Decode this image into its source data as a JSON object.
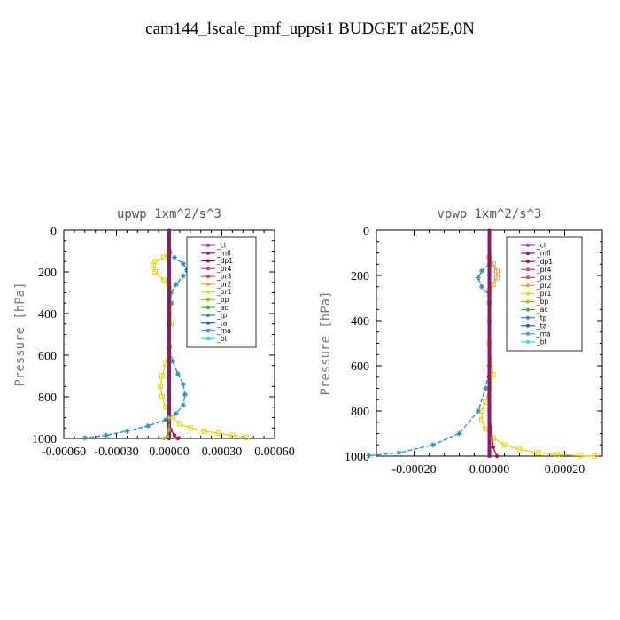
{
  "title": "cam144_lscale_pmf_uppsi1  BUDGET at25E,0N",
  "legend_entries": [
    "_cl",
    "_mfl",
    "_dp1",
    "_pr4",
    "_pr3",
    "_pr2",
    "_pr1",
    "_bp",
    "_ac",
    "_tp",
    "_ta",
    "_ma",
    "_bt"
  ],
  "legend_colors": [
    "#9b4fd0",
    "#8b1a6b",
    "#c4004c",
    "#e0407a",
    "#e04a3a",
    "#f0a040",
    "#f0d000",
    "#a0c020",
    "#30c030",
    "#2090c0",
    "#3050e0",
    "#40a0d0",
    "#20e0e0"
  ],
  "chart_data": [
    {
      "type": "line",
      "title": "upwp   1xm^2/s^3",
      "xlabel": "",
      "ylabel": "Pressure [hPa]",
      "xlim": [
        -0.0006,
        0.0006
      ],
      "ylim": [
        1000,
        0
      ],
      "xticks": [
        "-0.00060",
        "-0.00030",
        "0.00000",
        "0.00030",
        "0.00060"
      ],
      "yticks": [
        "0",
        "200",
        "400",
        "600",
        "800",
        "1000"
      ],
      "legend": "top-right",
      "series": [
        {
          "name": "_pr1",
          "color": "#f0d000",
          "x": [
            0,
            -3e-05,
            -8e-05,
            -9e-05,
            -8e-05,
            -3e-05,
            0,
            1e-05,
            1e-05,
            0,
            -2e-05,
            -4e-05,
            -5e-05,
            -4e-05,
            -2e-05,
            2e-05,
            6e-05,
            0.00012,
            0.0002,
            0.00028,
            0.00036,
            0.00044
          ],
          "y": [
            100,
            130,
            150,
            170,
            200,
            240,
            280,
            350,
            450,
            560,
            640,
            700,
            750,
            800,
            850,
            900,
            930,
            950,
            965,
            975,
            985,
            995
          ]
        },
        {
          "name": "_tp",
          "color": "#2090c0",
          "x": [
            0,
            3e-05,
            8e-05,
            0.0001,
            8e-05,
            4e-05,
            1e-05,
            1e-05,
            0,
            0,
            2e-05,
            5e-05,
            8e-05,
            9e-05,
            8e-05,
            4e-05,
            -2e-05,
            -0.00012,
            -0.00024,
            -0.00036,
            -0.00048
          ],
          "y": [
            100,
            130,
            160,
            190,
            220,
            260,
            300,
            350,
            450,
            560,
            630,
            690,
            740,
            790,
            840,
            880,
            910,
            940,
            965,
            985,
            998
          ]
        },
        {
          "name": "_dp1",
          "color": "#c4004c",
          "x": [
            0,
            0,
            0,
            0,
            0,
            0,
            1e-05,
            3e-05,
            5e-05
          ],
          "y": [
            0,
            200,
            400,
            600,
            800,
            900,
            960,
            985,
            1000
          ]
        },
        {
          "name": "_mfl",
          "color": "#8b1a6b",
          "x": [
            0,
            0,
            0,
            0,
            0,
            0,
            0
          ],
          "y": [
            0,
            200,
            400,
            600,
            800,
            950,
            1000
          ]
        },
        {
          "name": "_bp",
          "color": "#a0c020",
          "x": [
            0,
            0,
            -1e-05,
            -3e-05
          ],
          "y": [
            900,
            960,
            990,
            1000
          ]
        }
      ]
    },
    {
      "type": "line",
      "title": "vpwp   1xm^2/s^3",
      "xlabel": "",
      "ylabel": "Pressure [hPa]",
      "xlim": [
        -0.0003,
        0.0003
      ],
      "ylim": [
        1000,
        0
      ],
      "xticks": [
        "-0.00020",
        "0.00000",
        "0.00020"
      ],
      "yticks": [
        "0",
        "200",
        "400",
        "600",
        "800",
        "1000"
      ],
      "legend": "top-right",
      "series": [
        {
          "name": "_pr2",
          "color": "#f0a040",
          "x": [
            0,
            1e-05,
            2e-05,
            2e-05,
            1e-05,
            0,
            0,
            0,
            0
          ],
          "y": [
            120,
            150,
            180,
            210,
            240,
            270,
            320,
            500,
            700
          ]
        },
        {
          "name": "_pr1",
          "color": "#f0d000",
          "x": [
            0,
            1e-05,
            0,
            -1e-05,
            -2e-05,
            -2e-05,
            -1e-05,
            1e-05,
            4e-05,
            8e-05,
            0.00013,
            0.00018,
            0.00024,
            0.00028
          ],
          "y": [
            500,
            640,
            700,
            760,
            800,
            840,
            880,
            920,
            950,
            970,
            985,
            993,
            998,
            1000
          ]
        },
        {
          "name": "_tp",
          "color": "#2090c0",
          "x": [
            0,
            -2e-05,
            -3e-05,
            -2e-05,
            0,
            0,
            0,
            -1e-05,
            -3e-05,
            -8e-05,
            -0.00015,
            -0.00024,
            -0.00032
          ],
          "y": [
            150,
            180,
            210,
            250,
            290,
            400,
            600,
            700,
            800,
            900,
            950,
            985,
            998
          ]
        },
        {
          "name": "_dp1",
          "color": "#c4004c",
          "x": [
            0,
            0,
            0,
            0,
            0,
            1e-05,
            2e-05
          ],
          "y": [
            0,
            200,
            400,
            600,
            800,
            960,
            1000
          ]
        },
        {
          "name": "_mfl",
          "color": "#8b1a6b",
          "x": [
            0,
            0,
            0,
            0,
            0,
            0
          ],
          "y": [
            0,
            200,
            400,
            600,
            800,
            1000
          ]
        }
      ]
    }
  ]
}
